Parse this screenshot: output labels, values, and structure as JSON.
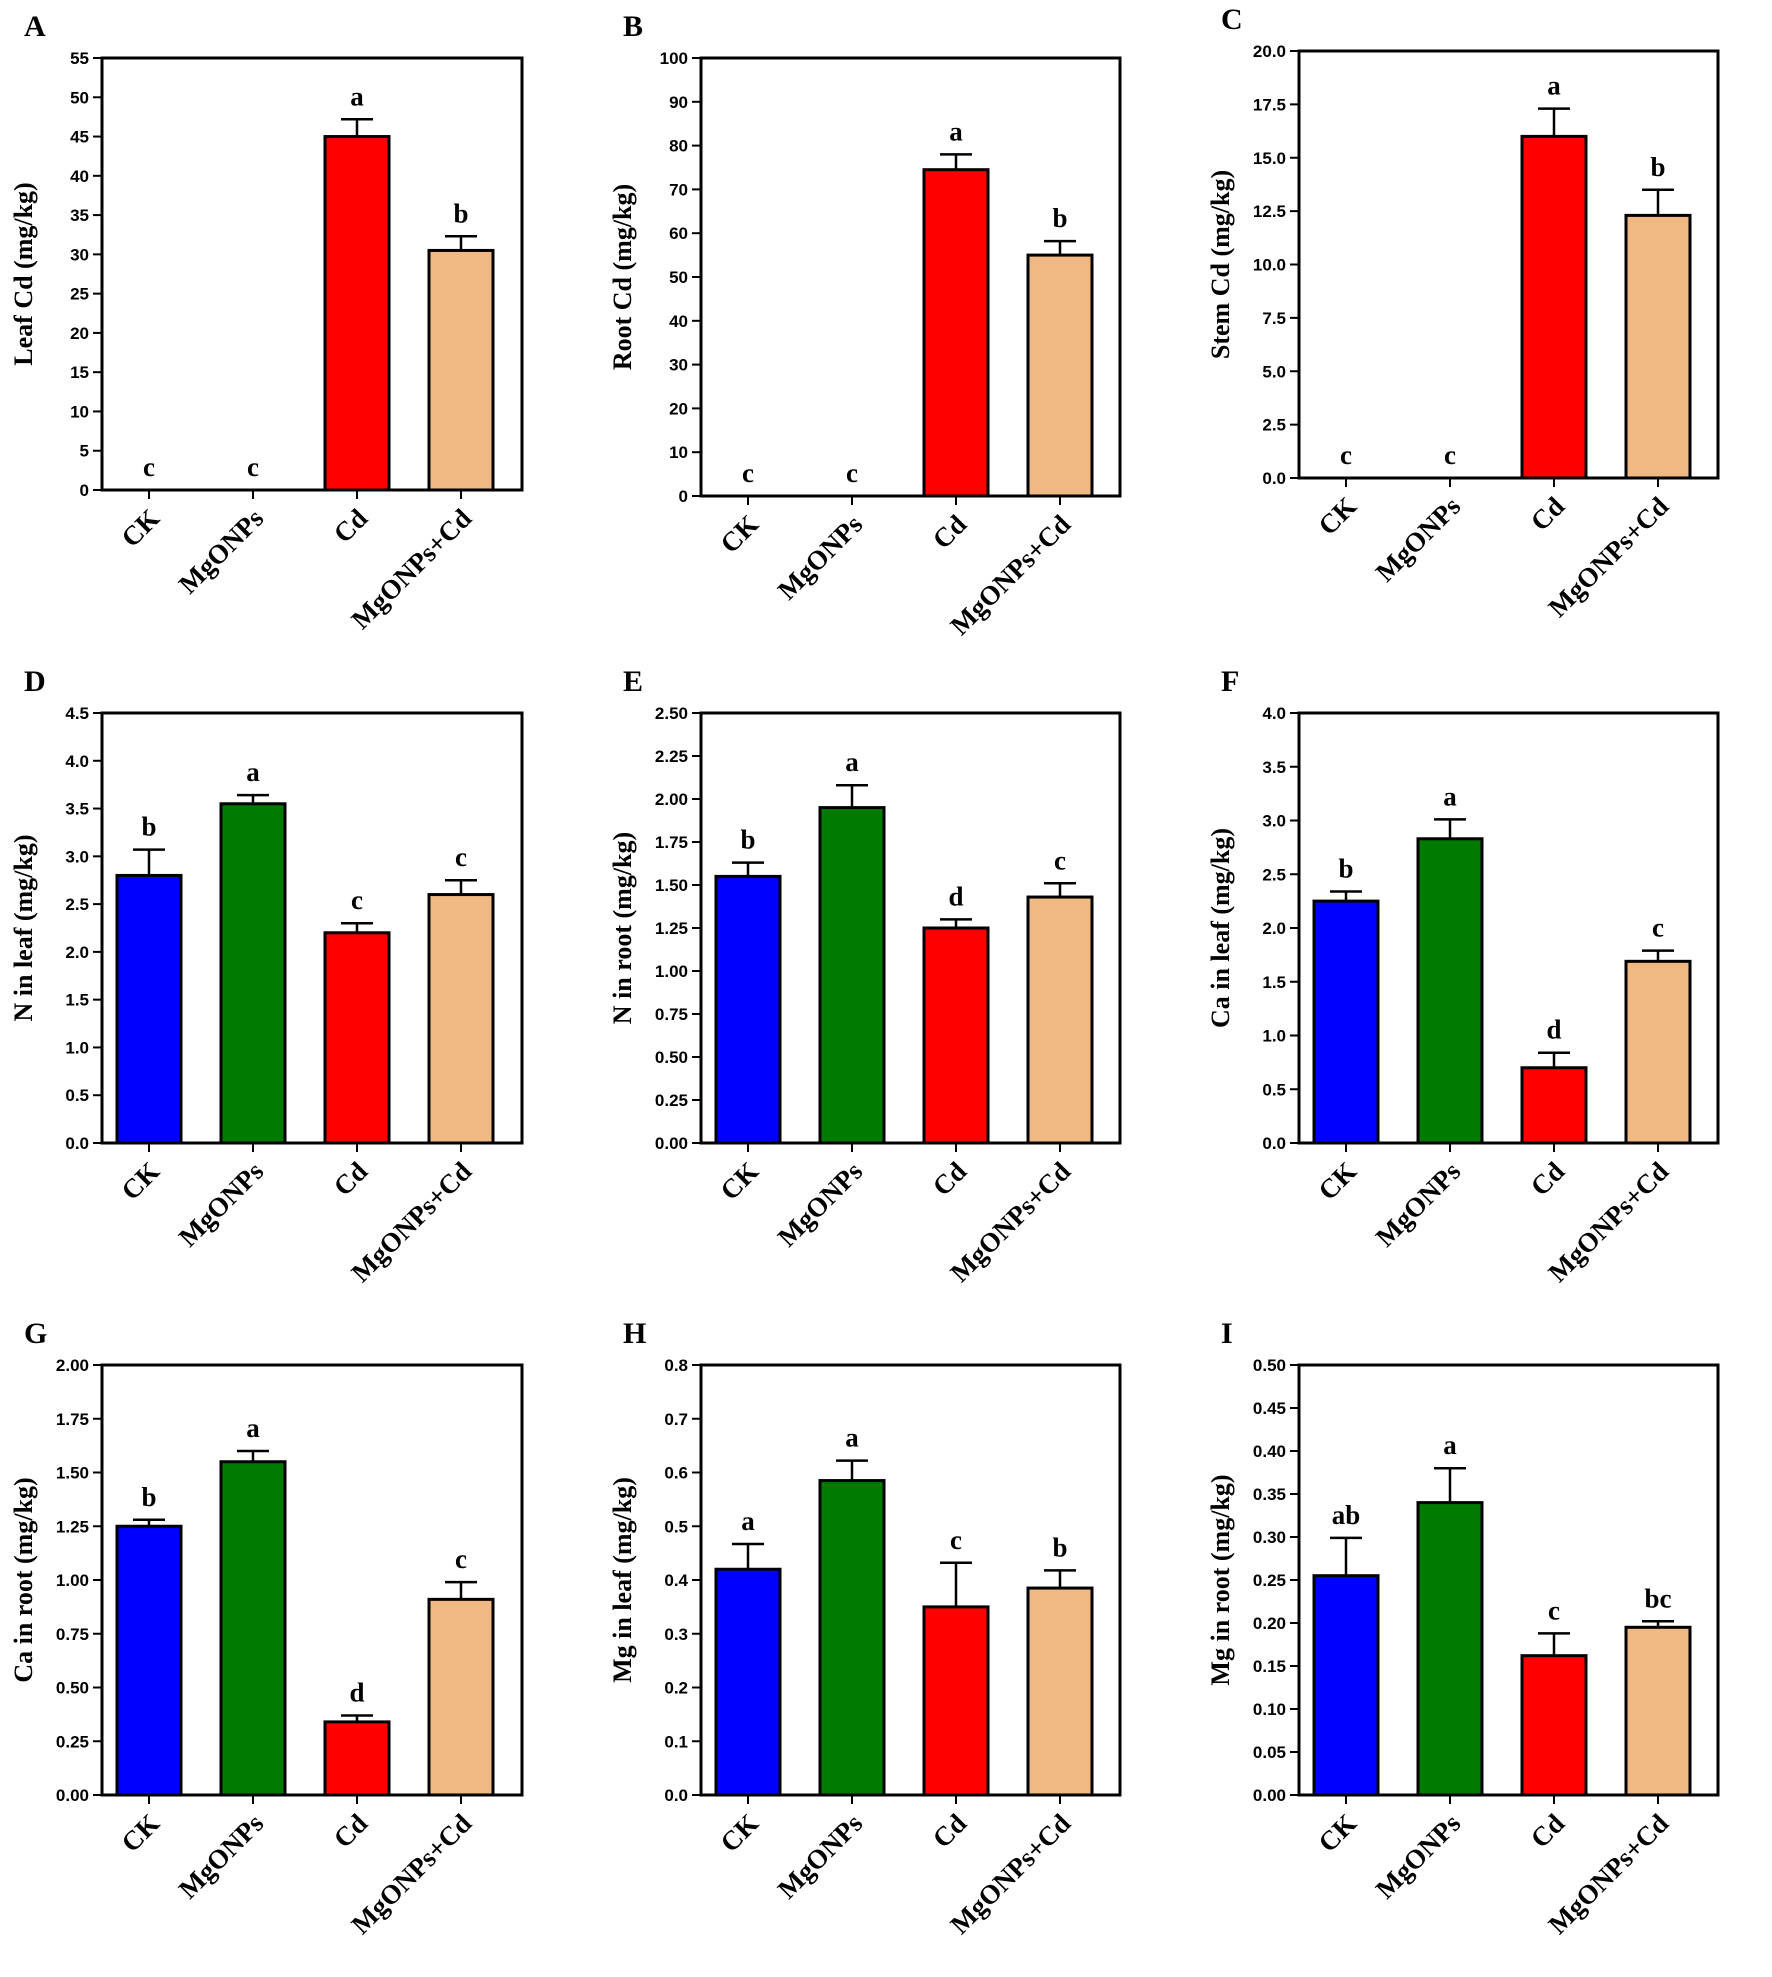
{
  "colors": {
    "CK": "#0000ff",
    "MgONPs": "#007a00",
    "Cd": "#ff0000",
    "MgONPs+Cd": "#f0b983"
  },
  "chart_data": [
    {
      "panel": "A",
      "type": "bar",
      "ylabel": "Leaf Cd (mg/kg)",
      "categories": [
        "CK",
        "MgONPs",
        "Cd",
        "MgONPs+Cd"
      ],
      "values": [
        0,
        0,
        45,
        30.5
      ],
      "errors": [
        0,
        0,
        2.2,
        1.8
      ],
      "letters": [
        "c",
        "c",
        "a",
        "b"
      ],
      "ylim": [
        0,
        55
      ],
      "ticks": [
        0,
        5,
        10,
        15,
        20,
        25,
        30,
        35,
        40,
        45,
        50,
        55
      ],
      "tick_labels": [
        "0",
        "5",
        "10",
        "15",
        "20",
        "25",
        "30",
        "35",
        "40",
        "45",
        "50",
        "55"
      ]
    },
    {
      "panel": "B",
      "type": "bar",
      "ylabel": "Root Cd (mg/kg)",
      "categories": [
        "CK",
        "MgONPs",
        "Cd",
        "MgONPs+Cd"
      ],
      "values": [
        0,
        0,
        74.5,
        55
      ],
      "errors": [
        0,
        0,
        3.5,
        3.2
      ],
      "letters": [
        "c",
        "c",
        "a",
        "b"
      ],
      "ylim": [
        0,
        100
      ],
      "ticks": [
        0,
        10,
        20,
        30,
        40,
        50,
        60,
        70,
        80,
        90,
        100
      ],
      "tick_labels": [
        "0",
        "10",
        "20",
        "30",
        "40",
        "50",
        "60",
        "70",
        "80",
        "90",
        "100"
      ]
    },
    {
      "panel": "C",
      "type": "bar",
      "ylabel": "Stem Cd (mg/kg)",
      "categories": [
        "CK",
        "MgONPs",
        "Cd",
        "MgONPs+Cd"
      ],
      "values": [
        0,
        0,
        16,
        12.3
      ],
      "errors": [
        0,
        0,
        1.3,
        1.2
      ],
      "letters": [
        "c",
        "c",
        "a",
        "b"
      ],
      "ylim": [
        0,
        20
      ],
      "ticks": [
        0,
        2.5,
        5,
        7.5,
        10,
        12.5,
        15,
        17.5,
        20
      ],
      "tick_labels": [
        "0.0",
        "2.5",
        "5.0",
        "7.5",
        "10.0",
        "12.5",
        "15.0",
        "17.5",
        "20.0"
      ]
    },
    {
      "panel": "D",
      "type": "bar",
      "ylabel": "N in leaf (mg/kg)",
      "categories": [
        "CK",
        "MgONPs",
        "Cd",
        "MgONPs+Cd"
      ],
      "values": [
        2.8,
        3.55,
        2.2,
        2.6
      ],
      "errors": [
        0.27,
        0.09,
        0.1,
        0.15
      ],
      "letters": [
        "b",
        "a",
        "c",
        "c"
      ],
      "ylim": [
        0,
        4.5
      ],
      "ticks": [
        0,
        0.5,
        1,
        1.5,
        2,
        2.5,
        3,
        3.5,
        4,
        4.5
      ],
      "tick_labels": [
        "0.0",
        "0.5",
        "1.0",
        "1.5",
        "2.0",
        "2.5",
        "3.0",
        "3.5",
        "4.0",
        "4.5"
      ]
    },
    {
      "panel": "E",
      "type": "bar",
      "ylabel": "N in root (mg/kg)",
      "categories": [
        "CK",
        "MgONPs",
        "Cd",
        "MgONPs+Cd"
      ],
      "values": [
        1.55,
        1.95,
        1.25,
        1.43
      ],
      "errors": [
        0.08,
        0.13,
        0.05,
        0.08
      ],
      "letters": [
        "b",
        "a",
        "d",
        "c"
      ],
      "ylim": [
        0,
        2.5
      ],
      "ticks": [
        0,
        0.25,
        0.5,
        0.75,
        1,
        1.25,
        1.5,
        1.75,
        2,
        2.25,
        2.5
      ],
      "tick_labels": [
        "0.00",
        "0.25",
        "0.50",
        "0.75",
        "1.00",
        "1.25",
        "1.50",
        "1.75",
        "2.00",
        "2.25",
        "2.50"
      ]
    },
    {
      "panel": "F",
      "type": "bar",
      "ylabel": "Ca in leaf (mg/kg)",
      "categories": [
        "CK",
        "MgONPs",
        "Cd",
        "MgONPs+Cd"
      ],
      "values": [
        2.25,
        2.83,
        0.7,
        1.69
      ],
      "errors": [
        0.09,
        0.18,
        0.14,
        0.1
      ],
      "letters": [
        "b",
        "a",
        "d",
        "c"
      ],
      "ylim": [
        0,
        4
      ],
      "ticks": [
        0,
        0.5,
        1,
        1.5,
        2,
        2.5,
        3,
        3.5,
        4
      ],
      "tick_labels": [
        "0.0",
        "0.5",
        "1.0",
        "1.5",
        "2.0",
        "2.5",
        "3.0",
        "3.5",
        "4.0"
      ]
    },
    {
      "panel": "G",
      "type": "bar",
      "ylabel": "Ca in root (mg/kg)",
      "categories": [
        "CK",
        "MgONPs",
        "Cd",
        "MgONPs+Cd"
      ],
      "values": [
        1.25,
        1.55,
        0.34,
        0.91
      ],
      "errors": [
        0.03,
        0.05,
        0.03,
        0.08
      ],
      "letters": [
        "b",
        "a",
        "d",
        "c"
      ],
      "ylim": [
        0,
        2
      ],
      "ticks": [
        0,
        0.25,
        0.5,
        0.75,
        1,
        1.25,
        1.5,
        1.75,
        2
      ],
      "tick_labels": [
        "0.00",
        "0.25",
        "0.50",
        "0.75",
        "1.00",
        "1.25",
        "1.50",
        "1.75",
        "2.00"
      ]
    },
    {
      "panel": "H",
      "type": "bar",
      "ylabel": "Mg in leaf (mg/kg)",
      "categories": [
        "CK",
        "MgONPs",
        "Cd",
        "MgONPs+Cd"
      ],
      "values": [
        0.42,
        0.585,
        0.35,
        0.385
      ],
      "errors": [
        0.047,
        0.037,
        0.082,
        0.033
      ],
      "letters": [
        "a",
        "a",
        "c",
        "b"
      ],
      "ylim": [
        0,
        0.8
      ],
      "ticks": [
        0,
        0.1,
        0.2,
        0.3,
        0.4,
        0.5,
        0.6,
        0.7,
        0.8
      ],
      "tick_labels": [
        "0.0",
        "0.1",
        "0.2",
        "0.3",
        "0.4",
        "0.5",
        "0.6",
        "0.7",
        "0.8"
      ]
    },
    {
      "panel": "I",
      "type": "bar",
      "ylabel": "Mg in root (mg/kg)",
      "categories": [
        "CK",
        "MgONPs",
        "Cd",
        "MgONPs+Cd"
      ],
      "values": [
        0.255,
        0.34,
        0.162,
        0.195
      ],
      "errors": [
        0.044,
        0.04,
        0.026,
        0.007
      ],
      "letters": [
        "ab",
        "a",
        "c",
        "bc"
      ],
      "ylim": [
        0,
        0.5
      ],
      "ticks": [
        0,
        0.05,
        0.1,
        0.15,
        0.2,
        0.25,
        0.3,
        0.35,
        0.4,
        0.45,
        0.5
      ],
      "tick_labels": [
        "0.00",
        "0.05",
        "0.10",
        "0.15",
        "0.20",
        "0.25",
        "0.30",
        "0.35",
        "0.40",
        "0.45",
        "0.50"
      ]
    }
  ]
}
